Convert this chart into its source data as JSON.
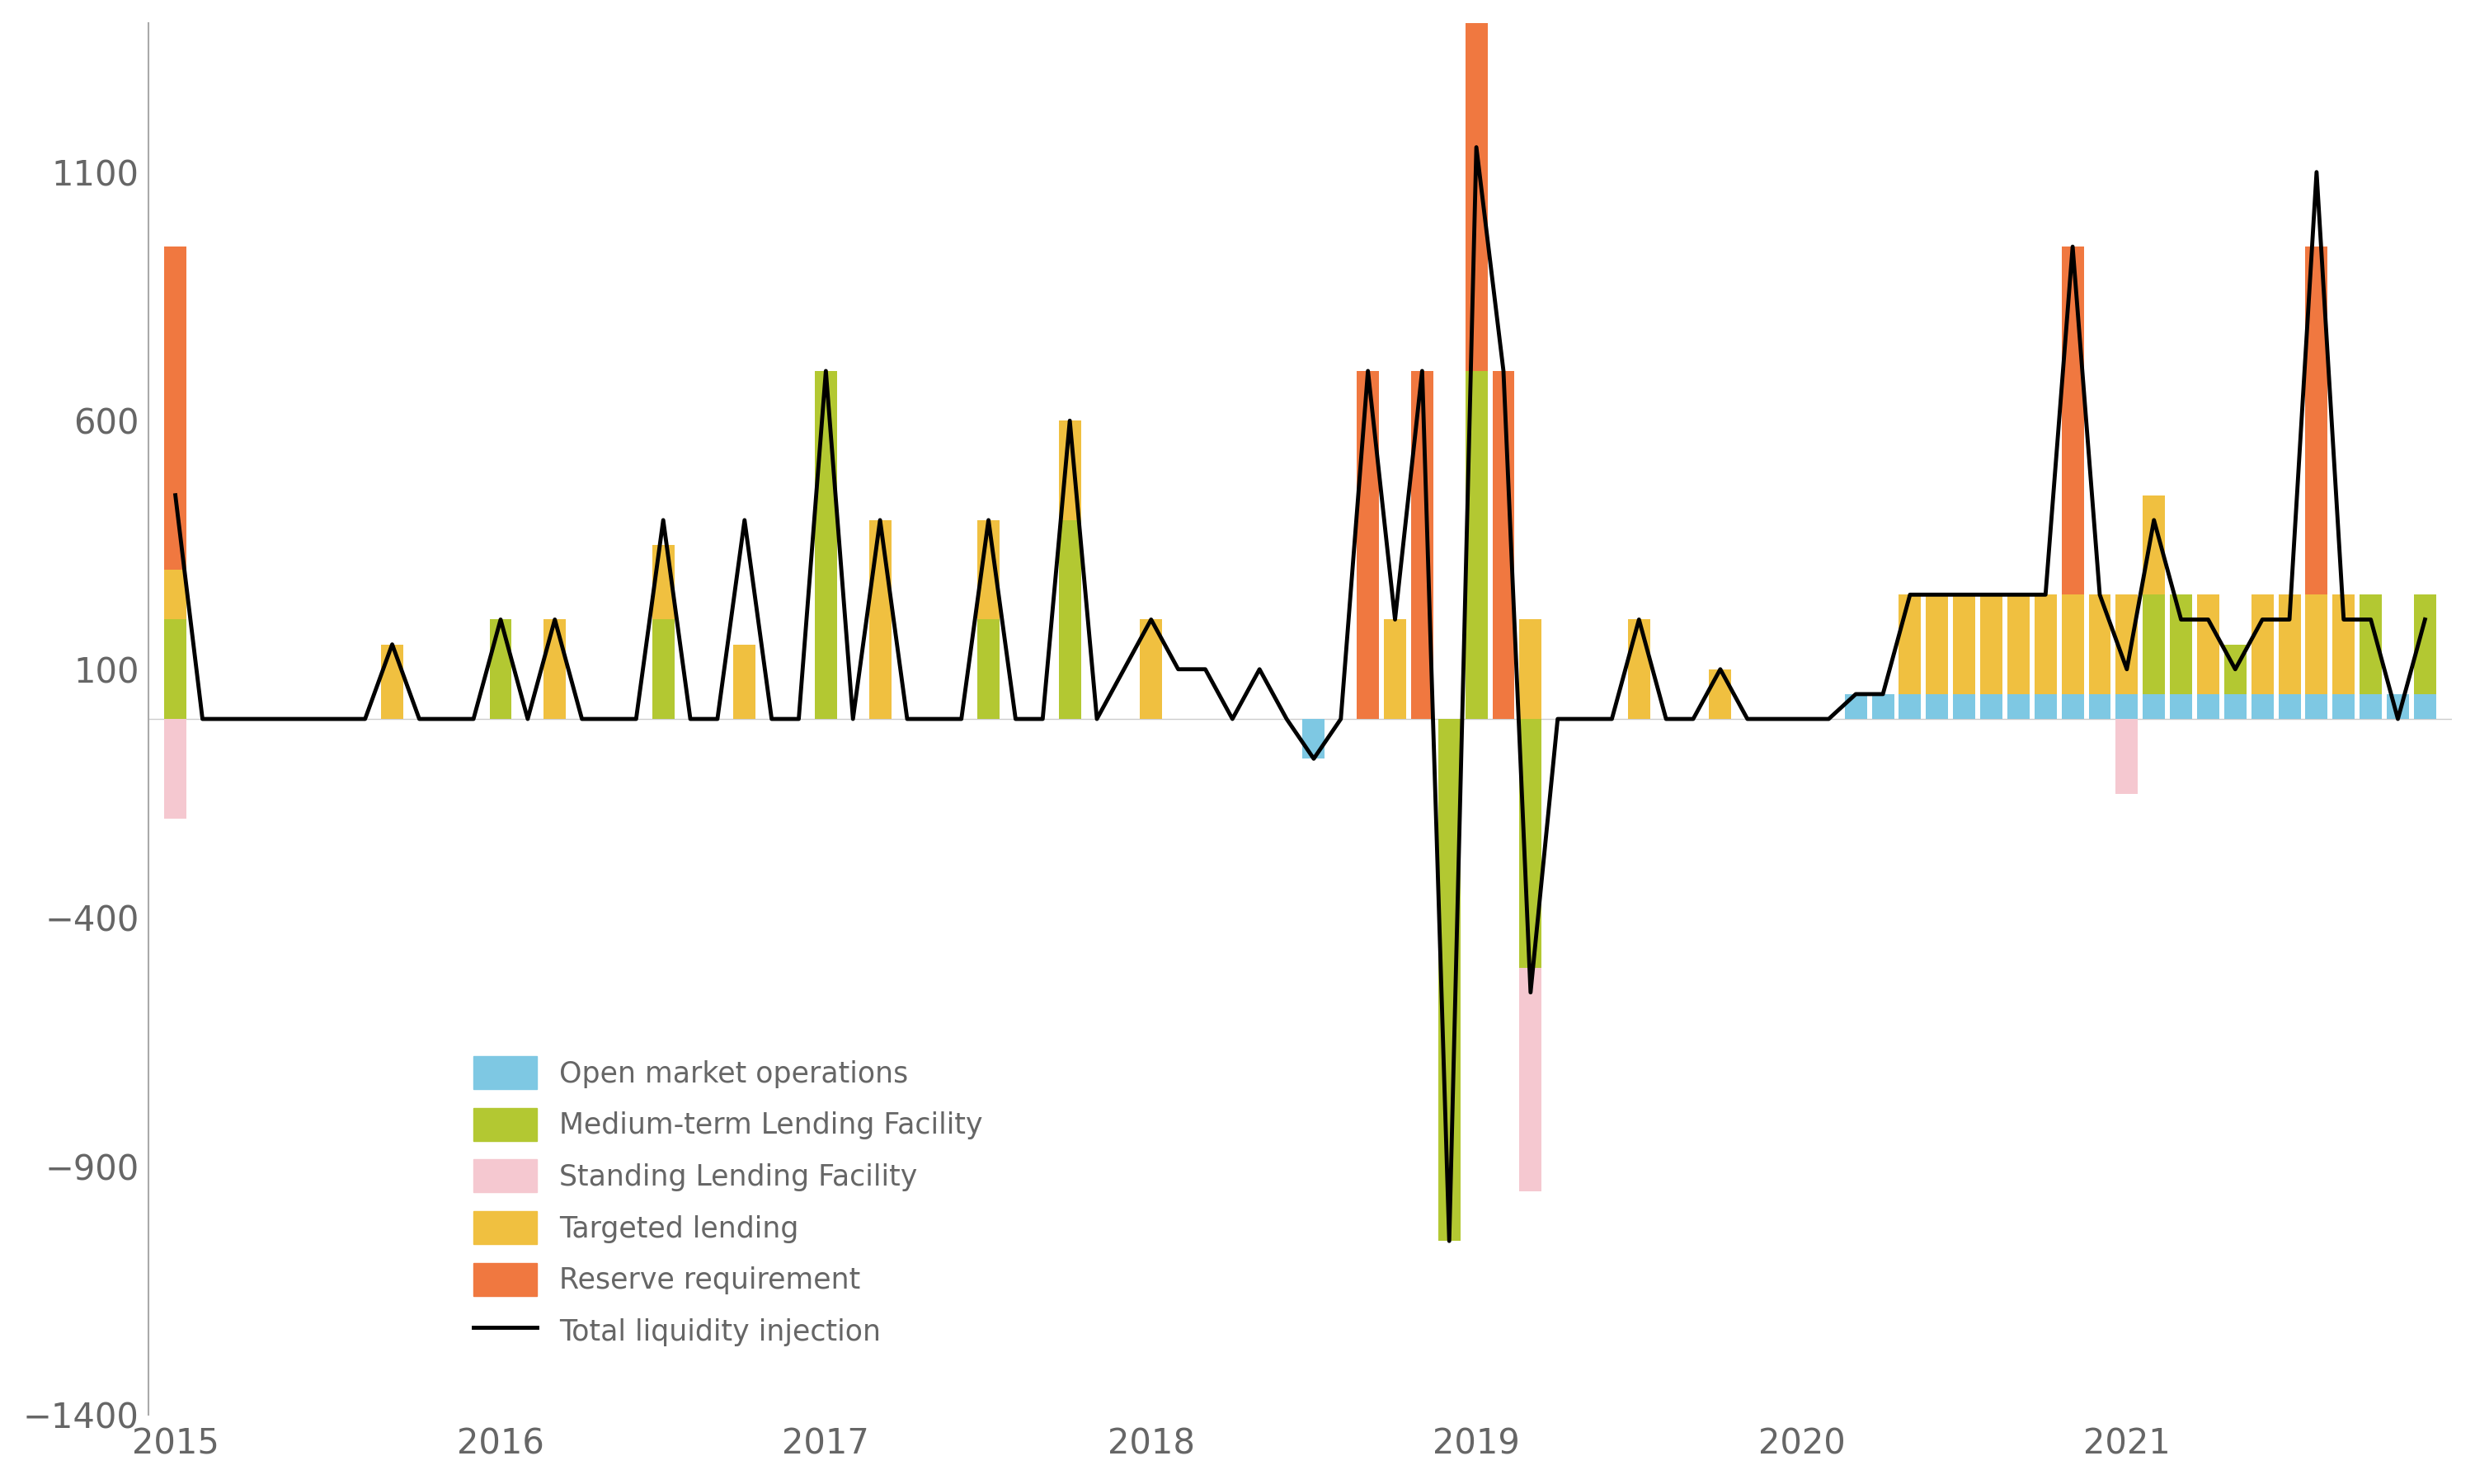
{
  "background_color": "#ffffff",
  "bar_colors": {
    "omo": "#7ec8e3",
    "mlf": "#b3c832",
    "slf": "#f5c8d0",
    "targeted": "#f0c040",
    "reserve": "#f07840"
  },
  "line_color": "#000000",
  "ylim": [
    -1400,
    1400
  ],
  "yticks": [
    -1400,
    -900,
    -400,
    100,
    600,
    1100
  ],
  "n_months": 84,
  "omo": [
    0,
    0,
    0,
    0,
    0,
    0,
    0,
    0,
    0,
    0,
    0,
    0,
    0,
    0,
    0,
    0,
    0,
    0,
    0,
    0,
    0,
    0,
    0,
    0,
    0,
    0,
    0,
    0,
    0,
    0,
    0,
    0,
    0,
    0,
    0,
    0,
    0,
    0,
    0,
    0,
    0,
    0,
    -80,
    0,
    0,
    0,
    0,
    0,
    0,
    0,
    0,
    0,
    0,
    0,
    0,
    0,
    0,
    0,
    0,
    0,
    0,
    0,
    50,
    50,
    50,
    50,
    50,
    50,
    50,
    50,
    50,
    50,
    50,
    50,
    50,
    50,
    50,
    50,
    50,
    50,
    50,
    50,
    50,
    50
  ],
  "mlf": [
    200,
    0,
    0,
    0,
    0,
    0,
    0,
    0,
    0,
    0,
    0,
    0,
    200,
    0,
    0,
    0,
    0,
    0,
    200,
    0,
    0,
    0,
    0,
    0,
    700,
    0,
    0,
    0,
    0,
    0,
    200,
    0,
    0,
    400,
    0,
    0,
    0,
    0,
    0,
    0,
    0,
    0,
    0,
    0,
    0,
    0,
    0,
    -1050,
    700,
    0,
    -500,
    0,
    0,
    0,
    0,
    0,
    0,
    0,
    0,
    0,
    0,
    0,
    0,
    0,
    0,
    0,
    0,
    0,
    0,
    0,
    0,
    0,
    0,
    200,
    200,
    0,
    100,
    0,
    0,
    0,
    0,
    200,
    0,
    200
  ],
  "slf": [
    -200,
    0,
    0,
    0,
    0,
    0,
    0,
    0,
    0,
    0,
    0,
    0,
    0,
    0,
    0,
    0,
    0,
    0,
    0,
    0,
    0,
    0,
    0,
    0,
    0,
    0,
    0,
    0,
    0,
    0,
    0,
    0,
    0,
    0,
    0,
    0,
    0,
    0,
    0,
    0,
    0,
    0,
    0,
    0,
    0,
    0,
    0,
    0,
    0,
    0,
    -450,
    0,
    0,
    0,
    0,
    0,
    0,
    0,
    0,
    0,
    0,
    0,
    0,
    0,
    0,
    0,
    0,
    0,
    0,
    0,
    0,
    0,
    -150,
    0,
    0,
    0,
    0,
    0,
    0,
    0,
    0,
    0,
    0,
    0
  ],
  "targeted": [
    100,
    0,
    0,
    0,
    0,
    0,
    0,
    0,
    150,
    0,
    0,
    0,
    0,
    0,
    200,
    0,
    0,
    0,
    150,
    0,
    0,
    150,
    0,
    0,
    0,
    0,
    400,
    0,
    0,
    0,
    200,
    0,
    0,
    200,
    0,
    0,
    200,
    0,
    0,
    0,
    0,
    0,
    0,
    0,
    0,
    200,
    0,
    0,
    0,
    0,
    200,
    0,
    0,
    0,
    200,
    0,
    0,
    100,
    0,
    0,
    0,
    0,
    0,
    0,
    200,
    200,
    200,
    200,
    200,
    200,
    200,
    200,
    200,
    200,
    0,
    200,
    0,
    200,
    200,
    200,
    200,
    0,
    0,
    0
  ],
  "reserve": [
    650,
    0,
    0,
    0,
    0,
    0,
    0,
    0,
    0,
    0,
    0,
    0,
    0,
    0,
    0,
    0,
    0,
    0,
    0,
    0,
    0,
    0,
    0,
    0,
    0,
    0,
    0,
    0,
    0,
    0,
    0,
    0,
    0,
    0,
    0,
    0,
    0,
    0,
    0,
    0,
    0,
    0,
    0,
    0,
    700,
    0,
    700,
    0,
    1150,
    700,
    0,
    0,
    0,
    0,
    0,
    0,
    0,
    0,
    0,
    0,
    0,
    0,
    0,
    0,
    0,
    0,
    0,
    0,
    0,
    0,
    700,
    0,
    0,
    0,
    0,
    0,
    0,
    0,
    0,
    700,
    0,
    0,
    0,
    0
  ],
  "total_line": [
    450,
    0,
    0,
    0,
    0,
    0,
    0,
    0,
    150,
    0,
    0,
    0,
    200,
    0,
    200,
    0,
    0,
    0,
    400,
    0,
    0,
    400,
    0,
    0,
    700,
    0,
    400,
    0,
    0,
    0,
    400,
    0,
    0,
    600,
    0,
    100,
    200,
    100,
    100,
    0,
    100,
    0,
    -80,
    0,
    700,
    200,
    700,
    -1050,
    1150,
    700,
    -550,
    0,
    0,
    0,
    200,
    0,
    0,
    100,
    0,
    0,
    0,
    0,
    50,
    50,
    250,
    250,
    250,
    250,
    250,
    250,
    950,
    250,
    100,
    400,
    200,
    200,
    100,
    200,
    200,
    1100,
    200,
    200,
    0,
    200
  ],
  "legend_labels": [
    "Open market operations",
    "Medium-term Lending Facility",
    "Standing Lending Facility",
    "Targeted lending",
    "Reserve requirement",
    "Total liquidity injection"
  ],
  "xtick_year_positions": [
    0,
    12,
    24,
    36,
    48,
    60,
    72
  ],
  "xtick_year_labels": [
    "2015",
    "2016",
    "2017",
    "2018",
    "2019",
    "2020",
    "2021"
  ]
}
